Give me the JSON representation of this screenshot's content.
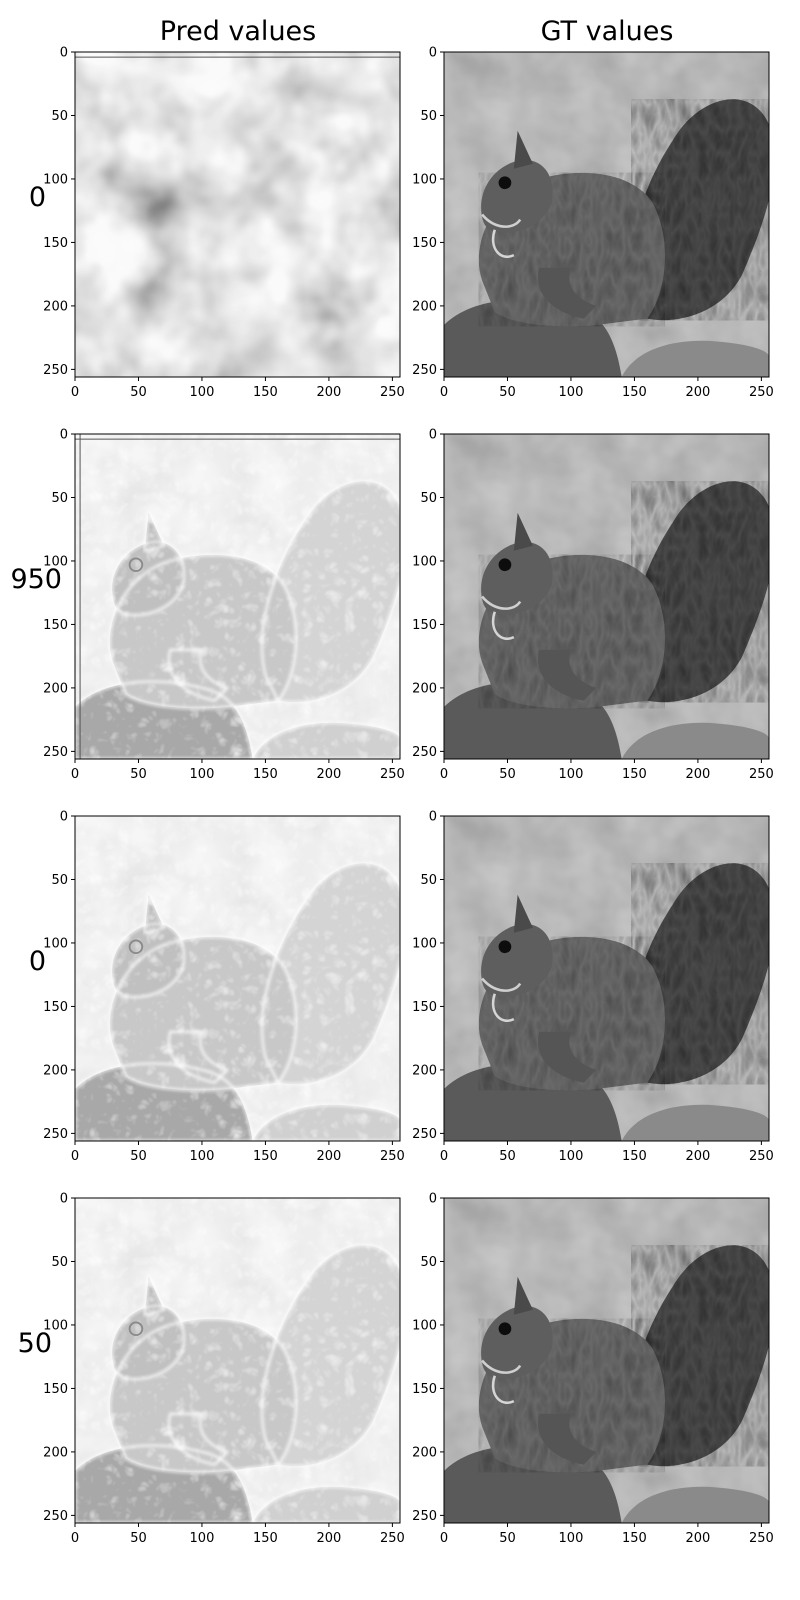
{
  "chart_data": {
    "type": "heatmap",
    "column_titles": [
      "Pred values",
      "GT values"
    ],
    "row_labels": [
      "0",
      "950",
      "0",
      "50"
    ],
    "colormap": "gray",
    "panels": [
      {
        "row": 0,
        "col": 0,
        "content": "noise-pred"
      },
      {
        "row": 0,
        "col": 1,
        "content": "squirrel-gt"
      },
      {
        "row": 1,
        "col": 0,
        "content": "squirrel-pred-edges"
      },
      {
        "row": 1,
        "col": 1,
        "content": "squirrel-gt"
      },
      {
        "row": 2,
        "col": 0,
        "content": "squirrel-pred-edges"
      },
      {
        "row": 2,
        "col": 1,
        "content": "squirrel-gt"
      },
      {
        "row": 3,
        "col": 0,
        "content": "squirrel-pred-edges"
      },
      {
        "row": 3,
        "col": 1,
        "content": "squirrel-gt"
      }
    ],
    "x_ticks": [
      0,
      50,
      100,
      150,
      200,
      250
    ],
    "y_ticks": [
      0,
      50,
      100,
      150,
      200,
      250
    ],
    "xlim": [
      0,
      256
    ],
    "ylim": [
      256,
      0
    ]
  }
}
